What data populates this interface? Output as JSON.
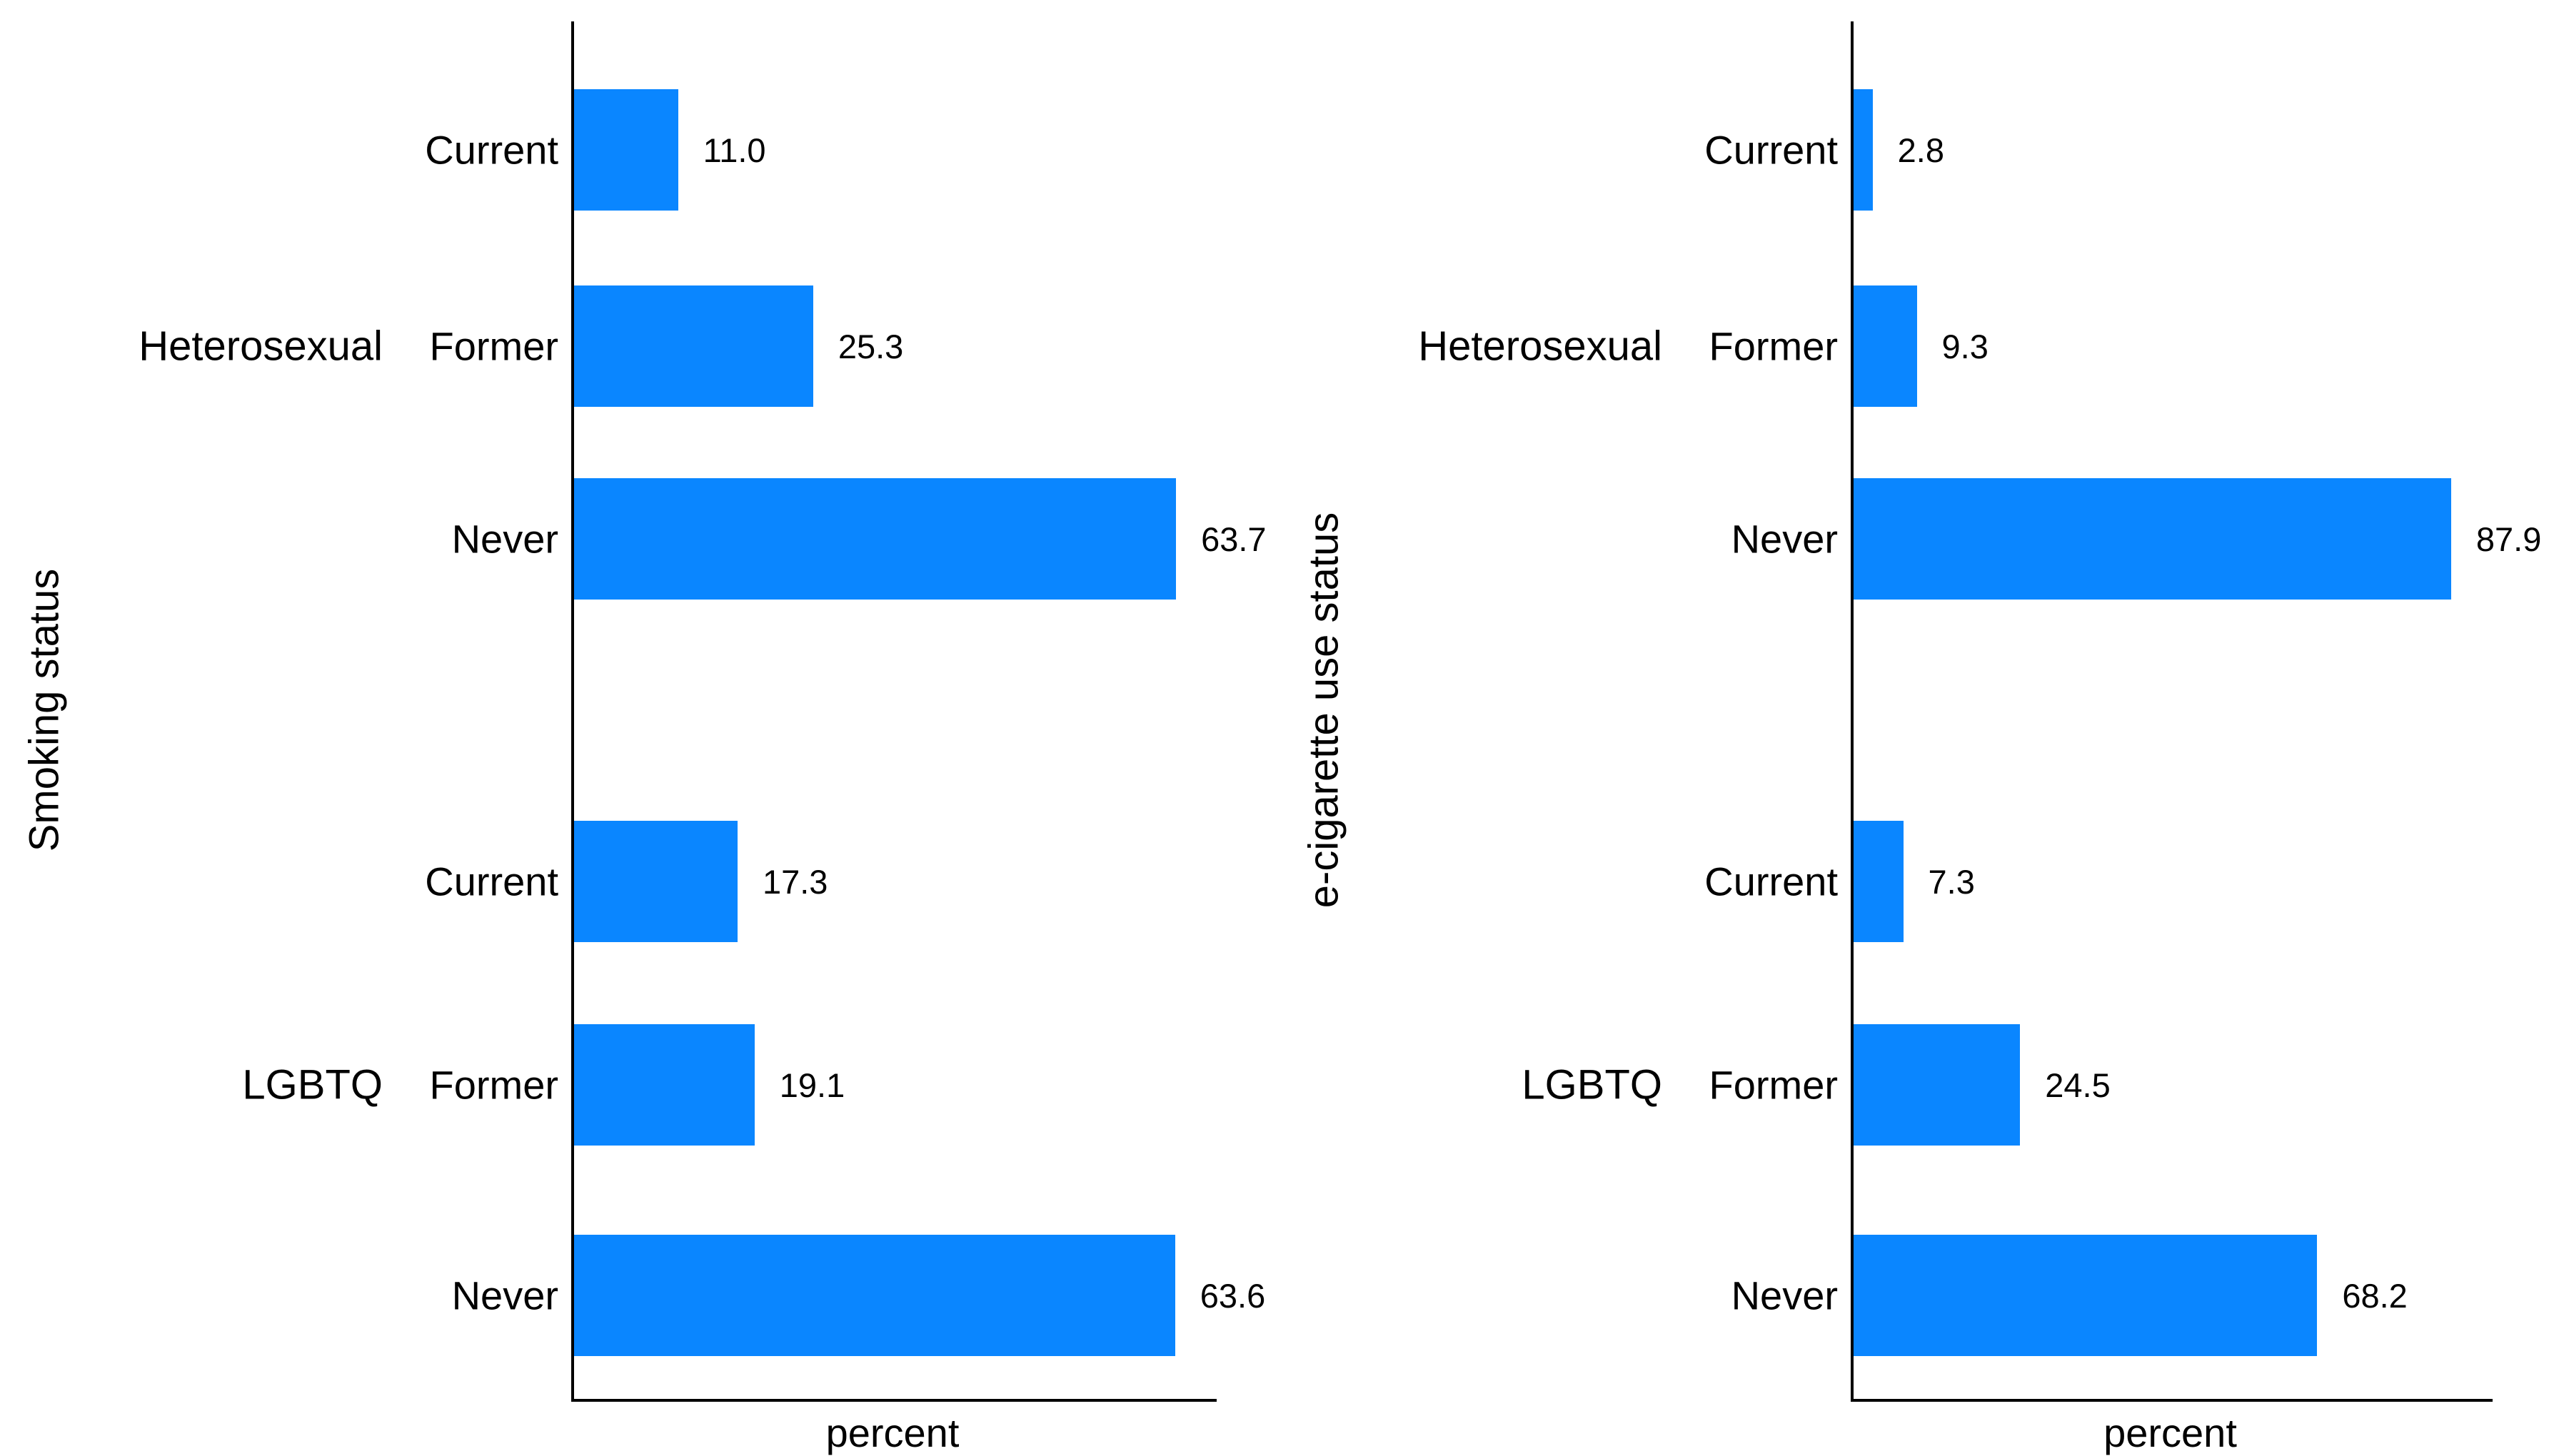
{
  "background_color": "#ffffff",
  "text_color": "#000000",
  "chart_data": [
    {
      "type": "bar",
      "orientation": "horizontal",
      "title": "",
      "xlabel": "percent",
      "ylabel": "Smoking status",
      "bar_color": "#0a86ff",
      "axis_color": "#000000",
      "grid": false,
      "xmax": 68,
      "x_tick_labels": [],
      "value_label_position": "end-of-bar",
      "groups": [
        {
          "name": "Heterosexual",
          "categories": [
            "Current",
            "Former",
            "Never"
          ],
          "values": [
            11.0,
            25.3,
            63.7
          ],
          "value_labels": [
            "11.0",
            "25.3",
            "63.7"
          ]
        },
        {
          "name": "LGBTQ",
          "categories": [
            "Current",
            "Former",
            "Never"
          ],
          "values": [
            17.3,
            19.1,
            63.6
          ],
          "value_labels": [
            "17.3",
            "19.1",
            "63.6"
          ]
        }
      ]
    },
    {
      "type": "bar",
      "orientation": "horizontal",
      "title": "",
      "xlabel": "percent",
      "ylabel": "e-cigarette use status",
      "bar_color": "#0a86ff",
      "axis_color": "#000000",
      "grid": false,
      "xmax": 94,
      "x_tick_labels": [],
      "value_label_position": "end-of-bar",
      "groups": [
        {
          "name": "Heterosexual",
          "categories": [
            "Current",
            "Former",
            "Never"
          ],
          "values": [
            2.8,
            9.3,
            87.9
          ],
          "value_labels": [
            "2.8",
            "9.3",
            "87.9"
          ]
        },
        {
          "name": "LGBTQ",
          "categories": [
            "Current",
            "Former",
            "Never"
          ],
          "values": [
            7.3,
            24.5,
            68.2
          ],
          "value_labels": [
            "7.3",
            "24.5",
            "68.2"
          ]
        }
      ]
    }
  ]
}
